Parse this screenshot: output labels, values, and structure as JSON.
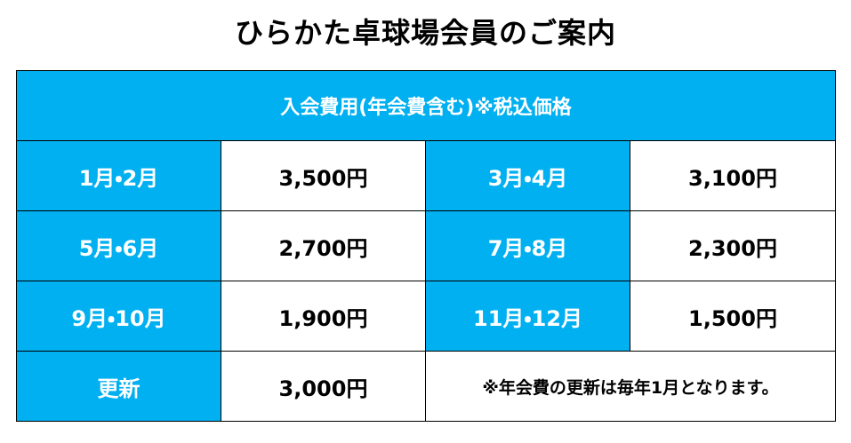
{
  "header": {
    "title": "ひらかた卓球場会員のご案内"
  },
  "table": {
    "caption": "入会費用(年会費含む)※税込価格",
    "rows": [
      [
        "1月・2月",
        "3,500円",
        "3月・4月",
        "3,100円"
      ],
      [
        "5月・6月",
        "2,700円",
        "7月・8月",
        "2,300円"
      ],
      [
        "9月・10月",
        "1,900円",
        "11月・12月",
        "1,500円"
      ],
      [
        "更新",
        "3,000円",
        "※年会費の更新は毎年1月となります。"
      ]
    ]
  }
}
